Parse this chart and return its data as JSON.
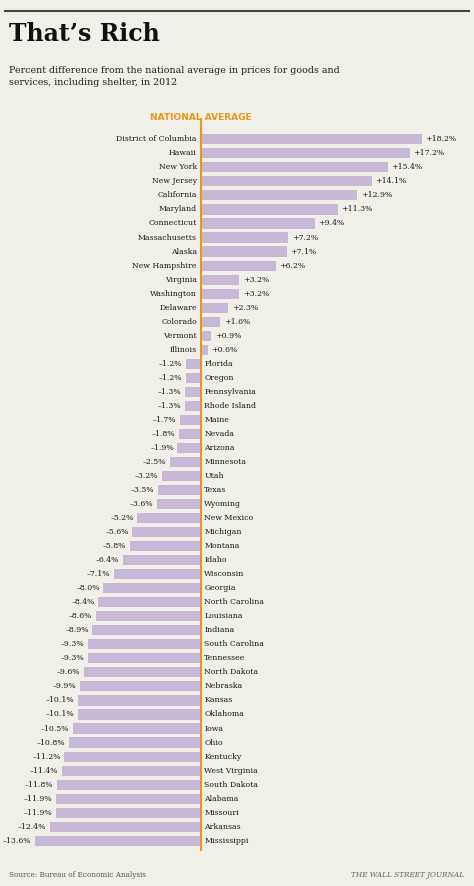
{
  "title": "That’s Rich",
  "subtitle": "Percent difference from the national average in prices for goods and\nservices, including shelter, in 2012",
  "national_avg_label": "NATIONAL AVERAGE",
  "source": "Source: Bureau of Economic Analysis",
  "credit": "THE WALL STREET JOURNAL",
  "bar_color": "#c8b8d8",
  "zero_line_color": "#e8961e",
  "background_color": "#f0efe8",
  "states": [
    "District of Columbia",
    "Hawaii",
    "New York",
    "New Jersey",
    "California",
    "Maryland",
    "Connecticut",
    "Massachusetts",
    "Alaska",
    "New Hampshire",
    "Virginia",
    "Washington",
    "Delaware",
    "Colorado",
    "Vermont",
    "Illinois",
    "Florida",
    "Oregon",
    "Pennsylvania",
    "Rhode Island",
    "Maine",
    "Nevada",
    "Arizona",
    "Minnesota",
    "Utah",
    "Texas",
    "Wyoming",
    "New Mexico",
    "Michigan",
    "Montana",
    "Idaho",
    "Wisconsin",
    "Georgia",
    "North Carolina",
    "Louisiana",
    "Indiana",
    "South Carolina",
    "Tennessee",
    "North Dakota",
    "Nebraska",
    "Kansas",
    "Oklahoma",
    "Iowa",
    "Ohio",
    "Kentucky",
    "West Virginia",
    "South Dakota",
    "Alabama",
    "Missouri",
    "Arkansas",
    "Mississippi"
  ],
  "values": [
    18.2,
    17.2,
    15.4,
    14.1,
    12.9,
    11.3,
    9.4,
    7.2,
    7.1,
    6.2,
    3.2,
    3.2,
    2.3,
    1.6,
    0.9,
    0.6,
    -1.2,
    -1.2,
    -1.3,
    -1.3,
    -1.7,
    -1.8,
    -1.9,
    -2.5,
    -3.2,
    -3.5,
    -3.6,
    -5.2,
    -5.6,
    -5.8,
    -6.4,
    -7.1,
    -8.0,
    -8.4,
    -8.6,
    -8.9,
    -9.3,
    -9.3,
    -9.6,
    -9.9,
    -10.1,
    -10.1,
    -10.5,
    -10.8,
    -11.2,
    -11.4,
    -11.8,
    -11.9,
    -11.9,
    -12.4,
    -13.6
  ]
}
